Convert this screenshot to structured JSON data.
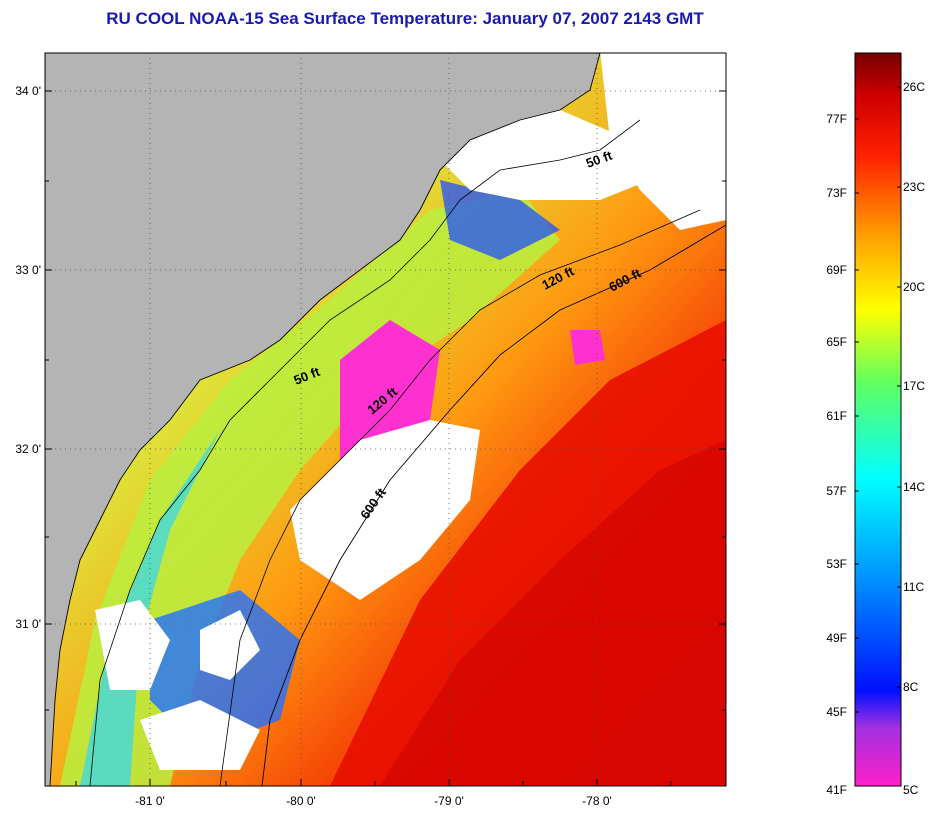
{
  "title": "RU COOL  NOAA-15  Sea Surface Temperature:  January 07, 2007 2143 GMT",
  "map": {
    "lat_labels": [
      "34 0'",
      "33 0'",
      "32 0'",
      "31 0'"
    ],
    "lon_labels": [
      "-81 0'",
      "-80 0'",
      "-79 0'",
      "-78 0'"
    ],
    "contours": [
      {
        "label": "50 ft"
      },
      {
        "label": "120 ft"
      },
      {
        "label": "600 ft"
      },
      {
        "label": "50 ft"
      },
      {
        "label": "120 ft"
      },
      {
        "label": "600 ft"
      }
    ]
  },
  "colorbar": {
    "fahrenheit": [
      "77F",
      "73F",
      "69F",
      "65F",
      "61F",
      "57F",
      "53F",
      "49F",
      "45F",
      "41F"
    ],
    "celsius": [
      "26C",
      "23C",
      "20C",
      "17C",
      "14C",
      "11C",
      "8C",
      "5C"
    ]
  },
  "colors": {
    "title": "#1a1ab0",
    "land": "#b4b4b4",
    "cloud": "#ffffff"
  }
}
